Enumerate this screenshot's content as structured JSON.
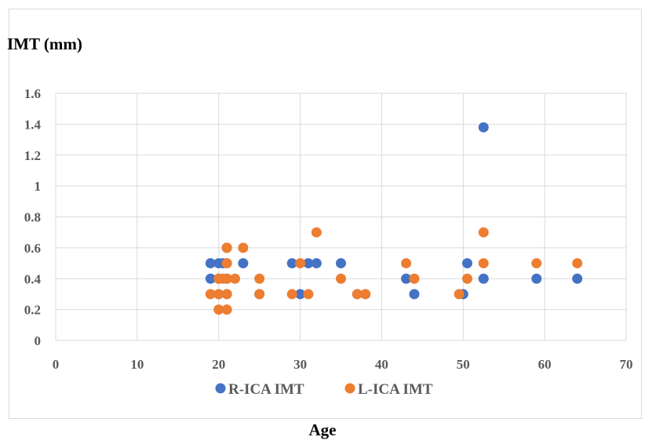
{
  "chart_data": {
    "type": "scatter",
    "title": "",
    "xlabel": "Age",
    "ylabel": "IMT (mm)",
    "xlim": [
      0,
      70
    ],
    "ylim": [
      0,
      1.6
    ],
    "x_ticks": [
      "0",
      "10",
      "20",
      "30",
      "40",
      "50",
      "60",
      "70"
    ],
    "y_ticks": [
      "0",
      "0.2",
      "0.4",
      "0.6",
      "0.8",
      "1",
      "1.2",
      "1.4",
      "1.6"
    ],
    "grid": true,
    "legend_position": "bottom",
    "series": [
      {
        "name": "R-ICA IMT",
        "color": "#4472c4",
        "points": [
          [
            19,
            0.5
          ],
          [
            19,
            0.4
          ],
          [
            20,
            0.5
          ],
          [
            20.5,
            0.5
          ],
          [
            20,
            0.4
          ],
          [
            20,
            0.3
          ],
          [
            21,
            0.6
          ],
          [
            21,
            0.5
          ],
          [
            21,
            0.4
          ],
          [
            21,
            0.3
          ],
          [
            23,
            0.5
          ],
          [
            25,
            0.3
          ],
          [
            29,
            0.5
          ],
          [
            30,
            0.3
          ],
          [
            31,
            0.5
          ],
          [
            32,
            0.5
          ],
          [
            35,
            0.5
          ],
          [
            37,
            0.3
          ],
          [
            38,
            0.3
          ],
          [
            43,
            0.4
          ],
          [
            44,
            0.3
          ],
          [
            50,
            0.3
          ],
          [
            50.5,
            0.5
          ],
          [
            52.5,
            1.38
          ],
          [
            52.5,
            0.4
          ],
          [
            59,
            0.4
          ],
          [
            64,
            0.4
          ]
        ]
      },
      {
        "name": "L-ICA IMT",
        "color": "#ed7d31",
        "points": [
          [
            19,
            0.3
          ],
          [
            20,
            0.4
          ],
          [
            20,
            0.3
          ],
          [
            20,
            0.2
          ],
          [
            21,
            0.6
          ],
          [
            21,
            0.5
          ],
          [
            20.5,
            0.4
          ],
          [
            21,
            0.4
          ],
          [
            21,
            0.3
          ],
          [
            21,
            0.2
          ],
          [
            22,
            0.4
          ],
          [
            23,
            0.6
          ],
          [
            25,
            0.4
          ],
          [
            25,
            0.3
          ],
          [
            29,
            0.3
          ],
          [
            30,
            0.5
          ],
          [
            31,
            0.3
          ],
          [
            32,
            0.7
          ],
          [
            35,
            0.4
          ],
          [
            37,
            0.3
          ],
          [
            38,
            0.3
          ],
          [
            43,
            0.5
          ],
          [
            44,
            0.4
          ],
          [
            49.5,
            0.3
          ],
          [
            50.5,
            0.4
          ],
          [
            52.5,
            0.7
          ],
          [
            52.5,
            0.5
          ],
          [
            59,
            0.5
          ],
          [
            64,
            0.5
          ]
        ]
      }
    ]
  }
}
